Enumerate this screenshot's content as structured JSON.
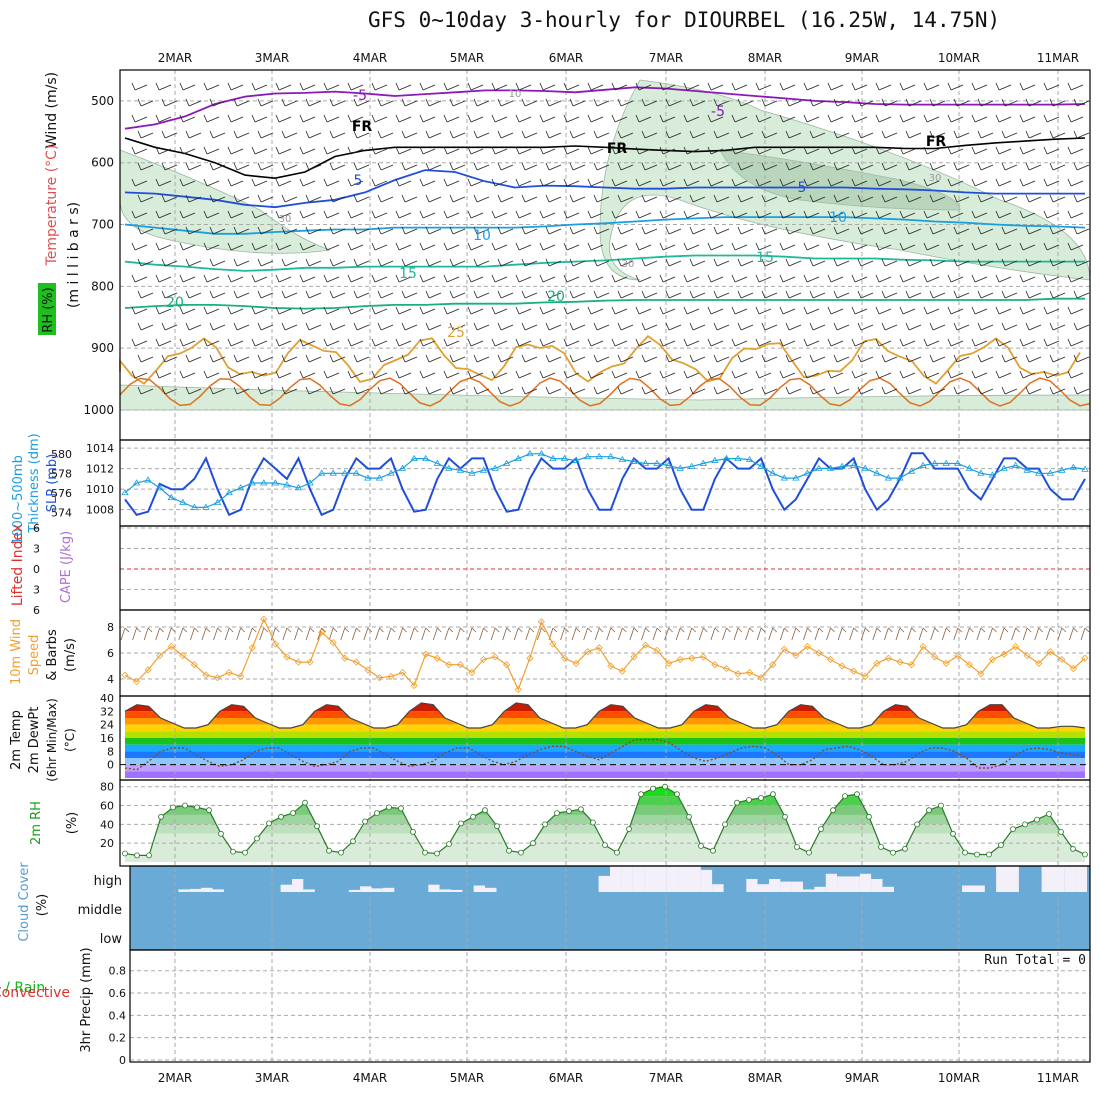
{
  "title": "GFS 0~10day 3-hourly for DIOURBEL (16.25W, 14.75N)",
  "dates": [
    "2MAR",
    "3MAR",
    "4MAR",
    "5MAR",
    "6MAR",
    "7MAR",
    "8MAR",
    "9MAR",
    "10MAR",
    "11MAR"
  ],
  "colors": {
    "purple": "#8a19b8",
    "black": "#000000",
    "blue": "#1f4fd8",
    "lightblue": "#1a9fe0",
    "teal": "#1fb89a",
    "green": "#19b07a",
    "orange": "#e0a030",
    "darkorange": "#e07020",
    "cloud": "#6aaad6",
    "rhgreen": "#19c219",
    "grid": "#999999",
    "windorange": "#f0a030"
  },
  "chart_data": [
    {
      "id": "upper-air",
      "type": "contour",
      "ylabel": "(m i l l i b a r s)",
      "side_labels": [
        "Wind (m/s)",
        "Temperature (°C)",
        "RH (%)"
      ],
      "ylim": [
        1000,
        450
      ],
      "yticks": [
        500,
        600,
        700,
        800,
        900,
        1000
      ],
      "contours": [
        {
          "label": "-5",
          "color": "purple",
          "level_mb": [
            545,
            538,
            525,
            505,
            493,
            488,
            487,
            485,
            488,
            492,
            489,
            486,
            483,
            483,
            484,
            486,
            482,
            478,
            480,
            484,
            488,
            492,
            496,
            500,
            502,
            505,
            506,
            506,
            506,
            506,
            506,
            506,
            505
          ]
        },
        {
          "label": "FR",
          "color": "black",
          "level_mb": [
            560,
            575,
            585,
            600,
            620,
            625,
            615,
            590,
            580,
            575,
            575,
            575,
            575,
            575,
            575,
            573,
            575,
            578,
            580,
            582,
            580,
            575,
            575,
            575,
            575,
            575,
            577,
            577,
            572,
            568,
            565,
            562,
            560
          ]
        },
        {
          "label": "5",
          "color": "blue",
          "level_mb": [
            648,
            650,
            655,
            660,
            668,
            672,
            665,
            660,
            648,
            628,
            612,
            615,
            630,
            640,
            637,
            638,
            640,
            642,
            642,
            640,
            640,
            640,
            640,
            640,
            640,
            642,
            643,
            645,
            648,
            650,
            650,
            650,
            650
          ]
        },
        {
          "label": "10",
          "color": "lightblue",
          "level_mb": [
            700,
            705,
            710,
            715,
            715,
            712,
            710,
            708,
            708,
            705,
            705,
            705,
            705,
            705,
            703,
            700,
            698,
            695,
            692,
            690,
            688,
            688,
            688,
            688,
            688,
            690,
            692,
            695,
            697,
            700,
            702,
            703,
            705
          ]
        },
        {
          "label": "15",
          "color": "teal",
          "level_mb": [
            760,
            765,
            768,
            772,
            775,
            773,
            770,
            770,
            768,
            768,
            768,
            768,
            768,
            765,
            762,
            760,
            758,
            755,
            752,
            750,
            750,
            750,
            752,
            755,
            755,
            755,
            757,
            758,
            760,
            760,
            760,
            760,
            760
          ]
        },
        {
          "label": "20",
          "color": "green",
          "level_mb": [
            835,
            832,
            830,
            830,
            832,
            835,
            836,
            835,
            832,
            830,
            830,
            828,
            828,
            828,
            826,
            825,
            823,
            822,
            822,
            822,
            822,
            822,
            822,
            822,
            822,
            822,
            822,
            822,
            822,
            822,
            822,
            820,
            820
          ]
        }
      ],
      "contour_labels_shown": [
        "-5",
        "FR",
        "5",
        "10",
        "15",
        "20",
        "25",
        "30"
      ]
    },
    {
      "id": "slp-thickness",
      "type": "line",
      "ylabels": [
        "1000~500mb",
        "Thickness (dm)",
        "SLP (mb)"
      ],
      "slp_ticks": [
        1008,
        1010,
        1012,
        1014
      ],
      "thickness_ticks": [
        574,
        576,
        578,
        580
      ],
      "series": [
        {
          "name": "SLP (mb)",
          "color": "blue",
          "values": [
            1009,
            1007.5,
            1007.8,
            1010.5,
            1010,
            1010,
            1011,
            1013,
            1010,
            1007.5,
            1008,
            1011,
            1013,
            1012,
            1011,
            1013,
            1010,
            1007.5,
            1008,
            1011,
            1013,
            1012,
            1012,
            1013,
            1010,
            1007.8,
            1008,
            1011,
            1013,
            1012,
            1013,
            1013,
            1010,
            1007.8,
            1008,
            1011,
            1013,
            1012,
            1012,
            1013,
            1010,
            1008,
            1008,
            1011,
            1013,
            1012,
            1012,
            1013,
            1010,
            1008,
            1008,
            1011,
            1013,
            1012,
            1012,
            1013,
            1010,
            1008,
            1009,
            1011,
            1013,
            1012,
            1012,
            1013,
            1010,
            1008,
            1009,
            1011,
            1013.5,
            1013.5,
            1012,
            1012,
            1012,
            1010,
            1009,
            1011,
            1013,
            1013,
            1012,
            1012,
            1010,
            1009,
            1009,
            1011
          ]
        },
        {
          "name": "1000-500mb Thickness (dm)",
          "color": "lightblue",
          "values": [
            576,
            577,
            577.3,
            576.5,
            575.5,
            575,
            574.5,
            574.5,
            575,
            576,
            576.5,
            577,
            577,
            577,
            576.8,
            576.5,
            577,
            578,
            578,
            578,
            578,
            577.5,
            577.5,
            578,
            578.5,
            579.5,
            579.5,
            579,
            578.5,
            578.3,
            578,
            578.3,
            578.5,
            579,
            579.5,
            580,
            580,
            579.5,
            579.5,
            579.3,
            579.7,
            579.7,
            579.7,
            579.4,
            579.2,
            579,
            579,
            578.8,
            578.5,
            578.7,
            579,
            579.3,
            579.5,
            579.5,
            579.4,
            578.7,
            578,
            577.5,
            577.5,
            578,
            578.5,
            578.5,
            578.7,
            578.8,
            578.5,
            578,
            577.5,
            577.5,
            578.2,
            578.8,
            579,
            579,
            579,
            578.5,
            578,
            577.8,
            578.5,
            578.8,
            578.3,
            578,
            578,
            578.3,
            578.6,
            578.4
          ]
        }
      ]
    },
    {
      "id": "cape-li",
      "type": "line",
      "ylabels": [
        "Lifted Index",
        "CAPE (J/kg)"
      ],
      "li_ticks": [
        "6",
        "3",
        "0",
        "3",
        "6"
      ],
      "series": [
        {
          "name": "Lifted Index",
          "values": []
        }
      ]
    },
    {
      "id": "wind10m",
      "type": "line",
      "ylabels": [
        "10m Wind",
        "Speed",
        "& Barbs",
        "(m/s)"
      ],
      "yticks": [
        4,
        6,
        8
      ],
      "ylim": [
        3,
        9
      ],
      "series": [
        {
          "name": "10m Wind Speed",
          "color": "windorange",
          "values": [
            4.3,
            3.8,
            4.7,
            5.8,
            6.5,
            5.8,
            5.1,
            4.3,
            4.1,
            4.5,
            4.2,
            6.4,
            8.6,
            6.7,
            5.7,
            5.3,
            5.3,
            7.6,
            6.8,
            5.6,
            5.3,
            4.7,
            4.1,
            4.2,
            4.5,
            3.5,
            5.9,
            5.6,
            5.1,
            5.1,
            4.5,
            5.5,
            5.7,
            5.1,
            3.2,
            5.6,
            8.4,
            6.7,
            5.6,
            5.2,
            6.1,
            6.4,
            5.0,
            4.6,
            5.7,
            6.6,
            6.2,
            5.2,
            5.5,
            5.6,
            5.7,
            5.1,
            4.8,
            4.4,
            4.5,
            4.1,
            5.1,
            6.3,
            5.8,
            6.5,
            6.0,
            5.5,
            5.0,
            4.6,
            4.2,
            5.2,
            5.6,
            5.3,
            5.1,
            6.5,
            5.7,
            5.2,
            5.8,
            5.1,
            4.4,
            5.5,
            5.9,
            6.5,
            5.8,
            5.2,
            6.1,
            5.5,
            4.8,
            5.6
          ]
        }
      ]
    },
    {
      "id": "temp2m",
      "type": "area",
      "ylabels": [
        "2m Temp",
        "2m DewPt",
        "(6hr Min/Max)",
        "(°C)"
      ],
      "yticks": [
        0,
        8,
        16,
        24,
        32,
        40
      ],
      "ylim": [
        -8,
        40
      ],
      "series": [
        {
          "name": "2m Temp",
          "values": [
            32,
            36,
            35,
            28,
            25,
            22,
            22,
            24,
            32,
            36,
            35,
            28,
            25,
            22,
            22,
            24,
            32,
            36,
            35,
            28,
            25,
            22,
            22,
            24,
            32,
            37,
            36,
            28,
            25,
            22,
            22,
            24,
            32,
            37,
            36,
            28,
            25,
            22,
            22,
            24,
            32,
            36,
            35,
            28,
            25,
            22,
            22,
            24,
            32,
            36,
            35,
            28,
            25,
            22,
            22,
            24,
            32,
            36,
            35,
            28,
            25,
            22,
            22,
            24,
            32,
            36,
            35,
            28,
            25,
            22,
            22,
            24,
            32,
            36,
            36,
            28,
            25,
            22,
            22,
            23,
            23,
            22
          ]
        },
        {
          "name": "2m DewPt",
          "values": [
            -2,
            -3,
            2,
            8,
            10,
            10,
            6,
            2,
            -1,
            0,
            3,
            8,
            10,
            10,
            6,
            2,
            -1,
            0,
            2,
            8,
            10,
            10,
            6,
            2,
            -1,
            0,
            2,
            7,
            10,
            10,
            6,
            2,
            0,
            2,
            6,
            9,
            11,
            11,
            8,
            5,
            3,
            7,
            11,
            15,
            15,
            15,
            13,
            8,
            4,
            2,
            4,
            7,
            10,
            11,
            10,
            6,
            0,
            0,
            3,
            9,
            10,
            11,
            9,
            5,
            0,
            0,
            2,
            7,
            10,
            10,
            8,
            4,
            -2,
            -2,
            0,
            5,
            9,
            10,
            9,
            7,
            6,
            5
          ]
        }
      ]
    },
    {
      "id": "rh2m",
      "type": "area",
      "ylabels": [
        "2m RH",
        "(%)"
      ],
      "yticks": [
        20,
        40,
        60,
        80
      ],
      "ylim": [
        0,
        85
      ],
      "series": [
        {
          "name": "2m RH",
          "color": "rhgreen",
          "values": [
            9,
            7,
            7,
            48,
            58,
            60,
            58,
            55,
            30,
            11,
            10,
            25,
            41,
            48,
            52,
            63,
            38,
            12,
            10,
            22,
            43,
            52,
            58,
            57,
            32,
            10,
            9,
            19,
            41,
            48,
            55,
            38,
            12,
            10,
            20,
            40,
            52,
            54,
            56,
            42,
            18,
            10,
            35,
            72,
            78,
            80,
            72,
            48,
            17,
            12,
            40,
            63,
            66,
            68,
            72,
            48,
            16,
            10,
            35,
            55,
            70,
            72,
            48,
            16,
            10,
            14,
            40,
            55,
            60,
            30,
            10,
            8,
            8,
            18,
            35,
            40,
            45,
            51,
            32,
            14,
            8
          ]
        }
      ]
    },
    {
      "id": "cloud",
      "type": "bar",
      "ylabels": [
        "Cloud Cover",
        "(%)"
      ],
      "levels": [
        "high",
        "middle",
        "low"
      ],
      "series": [
        {
          "name": "high",
          "values": [
            0,
            0,
            0,
            0,
            10,
            12,
            16,
            10,
            0,
            0,
            0,
            0,
            0,
            28,
            50,
            10,
            0,
            0,
            0,
            8,
            22,
            14,
            16,
            0,
            0,
            0,
            28,
            10,
            8,
            0,
            25,
            16,
            0,
            0,
            0,
            0,
            0,
            0,
            0,
            0,
            0,
            62,
            100,
            100,
            100,
            100,
            100,
            100,
            100,
            100,
            85,
            30,
            0,
            0,
            50,
            30,
            50,
            40,
            40,
            10,
            20,
            70,
            60,
            60,
            70,
            50,
            20,
            0,
            0,
            0,
            0,
            0,
            0,
            25,
            25,
            0,
            100,
            100,
            0,
            0,
            100,
            100,
            100,
            100
          ]
        },
        {
          "name": "middle",
          "values": []
        },
        {
          "name": "low",
          "values": []
        }
      ]
    },
    {
      "id": "precip",
      "type": "bar",
      "ylabels": [
        "Total / Rain",
        "Convective",
        "3hr Precip (mm)"
      ],
      "yticks": [
        0,
        0.2,
        0.4,
        0.6,
        0.8
      ],
      "ylim": [
        0,
        1
      ],
      "run_total": "Run Total = 0",
      "series": [
        {
          "name": "3hr Precip",
          "values": []
        }
      ]
    }
  ]
}
